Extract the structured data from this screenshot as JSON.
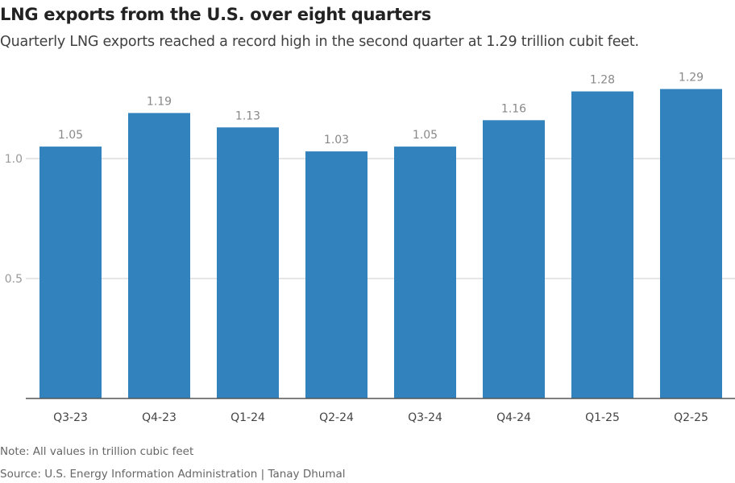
{
  "title": "LNG exports from the U.S. over eight quarters",
  "subtitle": "Quarterly LNG exports reached a record high in the second quarter at 1.29 trillion cubit feet.",
  "note": "Note: All values in trillion cubic feet",
  "source": "Source: U.S. Energy Information Administration | Tanay Dhumal",
  "chart_data": {
    "type": "bar",
    "categories": [
      "Q3-23",
      "Q4-23",
      "Q1-24",
      "Q2-24",
      "Q3-24",
      "Q4-24",
      "Q1-25",
      "Q2-25"
    ],
    "values": [
      1.05,
      1.19,
      1.13,
      1.03,
      1.05,
      1.16,
      1.28,
      1.29
    ],
    "data_labels": [
      "1.05",
      "1.19",
      "1.13",
      "1.03",
      "1.05",
      "1.16",
      "1.28",
      "1.29"
    ],
    "yticks": [
      0.5,
      1.0
    ],
    "ytick_labels": [
      "0.5",
      "1.0"
    ],
    "ylim": [
      0,
      1.33
    ],
    "grid": true,
    "bar_color": "#3182bd",
    "xlabel": "",
    "ylabel": ""
  }
}
